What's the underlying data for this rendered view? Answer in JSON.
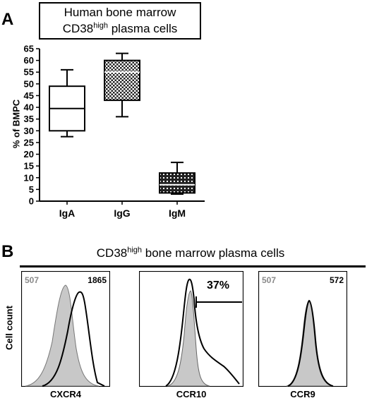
{
  "panel_a": {
    "letter": "A",
    "title_line1": "Human bone marrow",
    "title_line2_pre": "CD38",
    "title_line2_sup": "high",
    "title_line2_post": " plasma cells"
  },
  "panel_b": {
    "letter": "B",
    "title_pre": "CD38",
    "title_sup": "high",
    "title_post": " bone marrow plasma cells",
    "ylabel": "Cell count",
    "histograms": [
      {
        "marker": "CXCR4",
        "left_value": "507",
        "right_value": "1865",
        "gate_label": ""
      },
      {
        "marker": "CCR10",
        "left_value": "",
        "right_value": "",
        "gate_label": "37%"
      },
      {
        "marker": "CCR9",
        "left_value": "507",
        "right_value": "572",
        "gate_label": ""
      }
    ]
  },
  "chart_data": [
    {
      "type": "box",
      "ylabel": "% of BMPC",
      "ylim": [
        0,
        65
      ],
      "yticks": [
        0,
        5,
        10,
        15,
        20,
        25,
        30,
        35,
        40,
        45,
        50,
        55,
        60,
        65
      ],
      "categories": [
        "IgA",
        "IgG",
        "IgM"
      ],
      "boxes": [
        {
          "category": "IgA",
          "min": 27.5,
          "q1": 30,
          "median": 39.5,
          "q3": 49,
          "max": 56,
          "fill": "white"
        },
        {
          "category": "IgG",
          "min": 36,
          "q1": 43,
          "median": 55,
          "q3": 60,
          "max": 63,
          "fill": "checkered"
        },
        {
          "category": "IgM",
          "min": 3,
          "q1": 3.5,
          "median": 7,
          "q3": 12,
          "max": 16.5,
          "fill": "dotted"
        }
      ],
      "colors": {
        "box_stroke": "#000000",
        "pattern_dark": "#222222"
      }
    }
  ]
}
